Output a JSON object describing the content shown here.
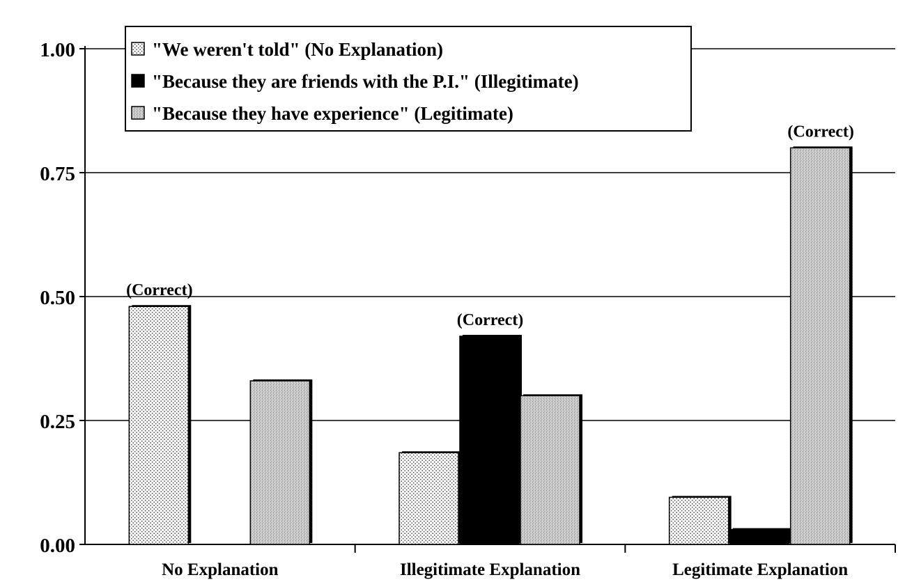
{
  "chart_data": {
    "type": "bar",
    "categories": [
      "No Explanation",
      "Illegitimate Explanation",
      "Legitimate Explanation"
    ],
    "series": [
      {
        "name": "\"We weren't told\" (No Explanation)",
        "values": [
          0.48,
          0.185,
          0.095
        ],
        "pattern": "dotted"
      },
      {
        "name": "\"Because they are friends with the P.I.\" (Illegitimate)",
        "values": [
          0.0,
          0.42,
          0.03
        ],
        "pattern": "solid"
      },
      {
        "name": "\"Because they have experience\" (Legitimate)",
        "values": [
          0.33,
          0.3,
          0.8
        ],
        "pattern": "speckled"
      }
    ],
    "annotations": [
      {
        "text": "(Correct)",
        "category": 0,
        "series": 0
      },
      {
        "text": "(Correct)",
        "category": 1,
        "series": 1
      },
      {
        "text": "(Correct)",
        "category": 2,
        "series": 2
      }
    ],
    "yticks": [
      "0.00",
      "0.25",
      "0.50",
      "0.75",
      "1.00"
    ],
    "ylim": [
      0,
      1
    ],
    "grid": true,
    "legend_position": "top-left",
    "colors": {
      "solid": "#000000",
      "dotted_bg": "#ffffff",
      "speckled_bg": "#c4c4c4",
      "grid": "#000000"
    }
  }
}
